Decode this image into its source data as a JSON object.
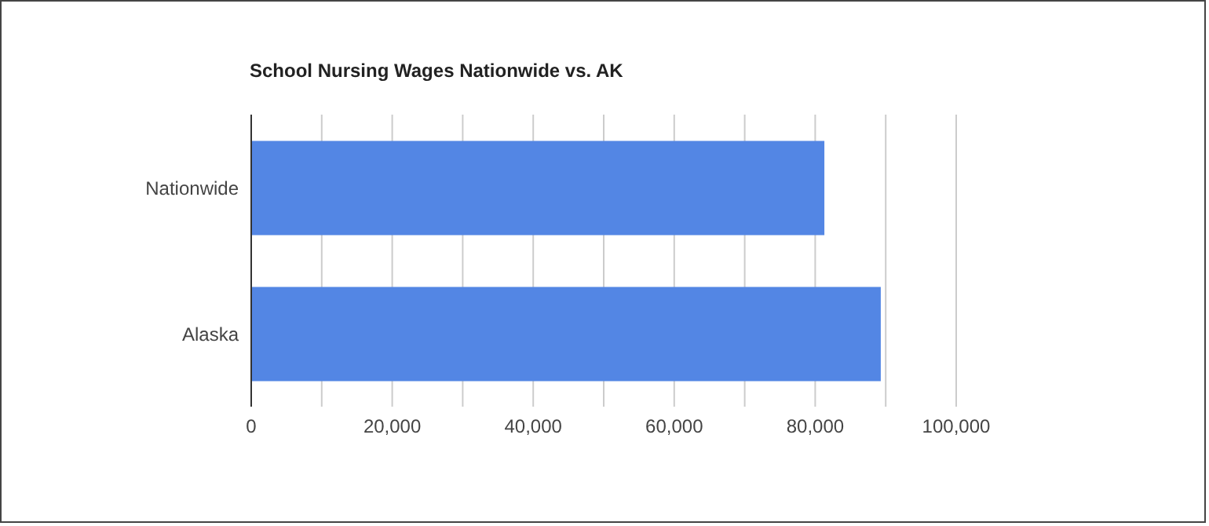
{
  "chart_data": {
    "type": "bar",
    "orientation": "horizontal",
    "title": "School Nursing Wages Nationwide vs. AK",
    "categories": [
      "Nationwide",
      "Alaska"
    ],
    "values": [
      81300,
      89300
    ],
    "color": "#5386e4",
    "xlim": [
      0,
      100000
    ],
    "xticks": [
      0,
      {
        "value": 10000,
        "label": null
      },
      {
        "value": 20000,
        "label": "20,000"
      },
      {
        "value": 30000,
        "label": null
      },
      {
        "value": 40000,
        "label": "40,000"
      },
      {
        "value": 50000,
        "label": null
      },
      {
        "value": 60000,
        "label": "60,000"
      },
      {
        "value": 70000,
        "label": null
      },
      {
        "value": 80000,
        "label": "80,000"
      },
      {
        "value": 90000,
        "label": null
      },
      {
        "value": 100000,
        "label": "100,000"
      }
    ],
    "grid": "x",
    "legend": false
  }
}
